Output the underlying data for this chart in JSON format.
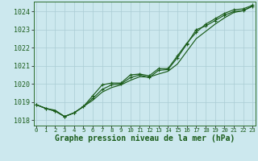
{
  "xlabel": "Graphe pression niveau de la mer (hPa)",
  "bg_color": "#cce8ee",
  "grid_color": "#aaccd4",
  "line_color": "#1a5c1a",
  "marker_color": "#1a5c1a",
  "x": [
    0,
    1,
    2,
    3,
    4,
    5,
    6,
    7,
    8,
    9,
    10,
    11,
    12,
    13,
    14,
    15,
    16,
    17,
    18,
    19,
    20,
    21,
    22,
    23
  ],
  "y_smooth": [
    1018.85,
    1018.65,
    1018.55,
    1018.2,
    1018.4,
    1018.75,
    1019.1,
    1019.55,
    1019.8,
    1019.95,
    1020.2,
    1020.4,
    1020.38,
    1020.55,
    1020.7,
    1021.1,
    1021.8,
    1022.5,
    1022.9,
    1023.3,
    1023.65,
    1023.95,
    1024.05,
    1024.3
  ],
  "y_line1": [
    1018.85,
    1018.65,
    1018.5,
    1018.2,
    1018.4,
    1018.75,
    1019.2,
    1019.7,
    1019.95,
    1020.0,
    1020.35,
    1020.5,
    1020.35,
    1020.75,
    1020.8,
    1021.45,
    1022.2,
    1023.0,
    1023.2,
    1023.5,
    1023.8,
    1024.0,
    1024.05,
    1024.3
  ],
  "y_line2": [
    1018.85,
    1018.65,
    1018.5,
    1018.2,
    1018.4,
    1018.75,
    1019.35,
    1019.95,
    1020.05,
    1020.05,
    1020.5,
    1020.55,
    1020.45,
    1020.85,
    1020.85,
    1021.55,
    1022.25,
    1022.85,
    1023.3,
    1023.6,
    1023.9,
    1024.1,
    1024.15,
    1024.35
  ],
  "ylim": [
    1017.7,
    1024.55
  ],
  "yticks": [
    1018,
    1019,
    1020,
    1021,
    1022,
    1023,
    1024
  ],
  "xlim": [
    -0.3,
    23.3
  ],
  "xticks": [
    0,
    1,
    2,
    3,
    4,
    5,
    6,
    7,
    8,
    9,
    10,
    11,
    12,
    13,
    14,
    15,
    16,
    17,
    18,
    19,
    20,
    21,
    22,
    23
  ],
  "xlabel_fontsize": 7.0,
  "ytick_fontsize": 6.0,
  "xtick_fontsize": 5.2,
  "spine_color": "#2e6e2e"
}
